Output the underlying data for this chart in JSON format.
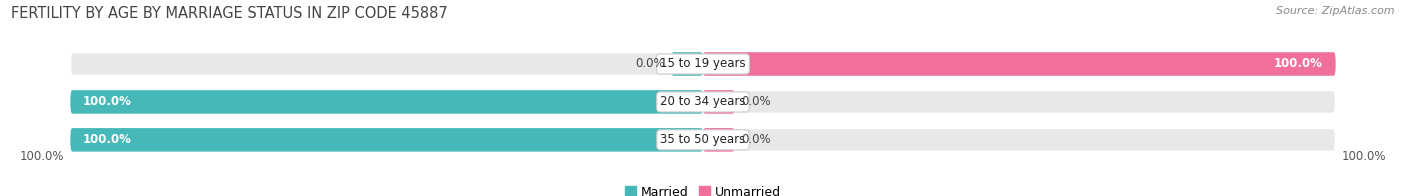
{
  "title": "FERTILITY BY AGE BY MARRIAGE STATUS IN ZIP CODE 45887",
  "source": "Source: ZipAtlas.com",
  "categories": [
    "15 to 19 years",
    "20 to 34 years",
    "35 to 50 years"
  ],
  "married_values": [
    0.0,
    100.0,
    100.0
  ],
  "unmarried_values": [
    100.0,
    0.0,
    0.0
  ],
  "married_color": "#46b8b8",
  "unmarried_color": "#f07099",
  "bar_bg_color": "#e8e8e8",
  "bar_height": 0.62,
  "title_fontsize": 10.5,
  "source_fontsize": 8,
  "label_fontsize": 8.5,
  "category_fontsize": 8.5,
  "legend_fontsize": 9,
  "axis_label_left": "100.0%",
  "axis_label_right": "100.0%",
  "background_color": "#ffffff",
  "stub_size": 5.0
}
